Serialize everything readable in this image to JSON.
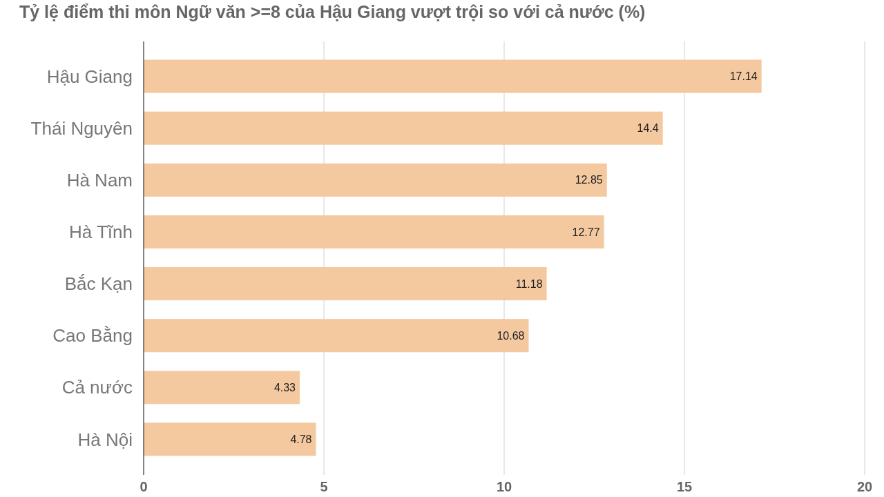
{
  "chart_data": {
    "type": "bar",
    "orientation": "horizontal",
    "title": "Tỷ lệ điểm thi môn Ngữ văn >=8 của Hậu Giang vượt trội so với cả nước (%)",
    "categories": [
      "Hậu Giang",
      "Thái Nguyên",
      "Hà Nam",
      "Hà Tĩnh",
      "Bắc Kạn",
      "Cao Bằng",
      "Cả nước",
      "Hà Nội"
    ],
    "values": [
      17.14,
      14.4,
      12.85,
      12.77,
      11.18,
      10.68,
      4.33,
      4.78
    ],
    "color": "#f4c9a0",
    "xlim": [
      0,
      20
    ],
    "xticks": [
      0,
      5,
      10,
      15,
      20
    ],
    "grid": "x",
    "data_labels": true
  }
}
